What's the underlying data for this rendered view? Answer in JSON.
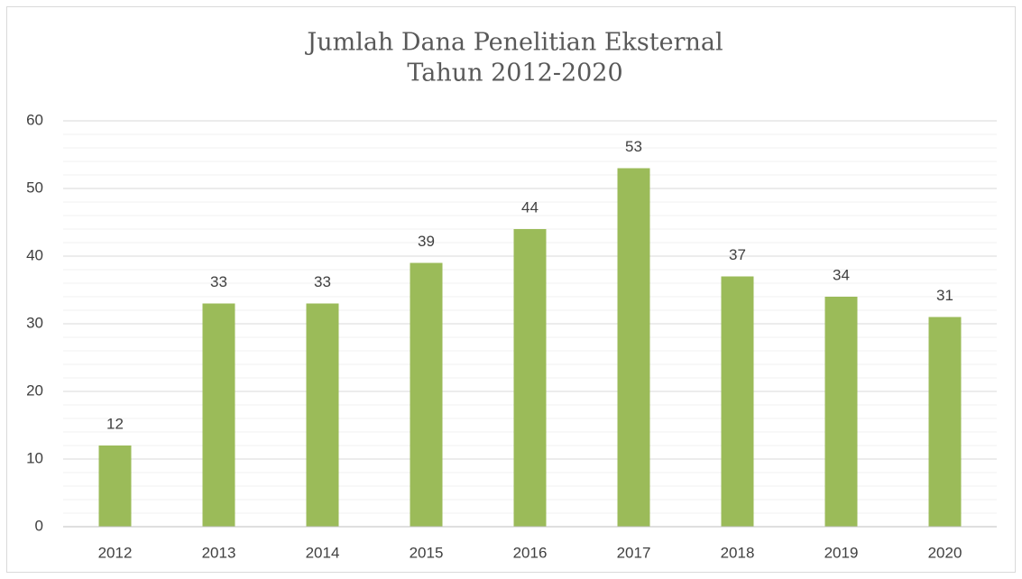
{
  "chart_data": {
    "type": "bar",
    "title": "Jumlah Dana Penelitian Eksternal",
    "subtitle": "Tahun 2012-2020",
    "categories": [
      "2012",
      "2013",
      "2014",
      "2015",
      "2016",
      "2017",
      "2018",
      "2019",
      "2020"
    ],
    "values": [
      12,
      33,
      33,
      39,
      44,
      53,
      37,
      34,
      31
    ],
    "color": "#9bbb59",
    "ylim": [
      0,
      60
    ],
    "yticks": [
      0,
      10,
      20,
      30,
      40,
      50,
      60
    ],
    "minor_yticks": [
      2,
      4,
      6,
      8,
      12,
      14,
      16,
      18,
      22,
      24,
      26,
      28,
      32,
      34,
      36,
      38,
      42,
      44,
      46,
      48,
      52,
      54,
      56,
      58
    ],
    "grid": true
  }
}
